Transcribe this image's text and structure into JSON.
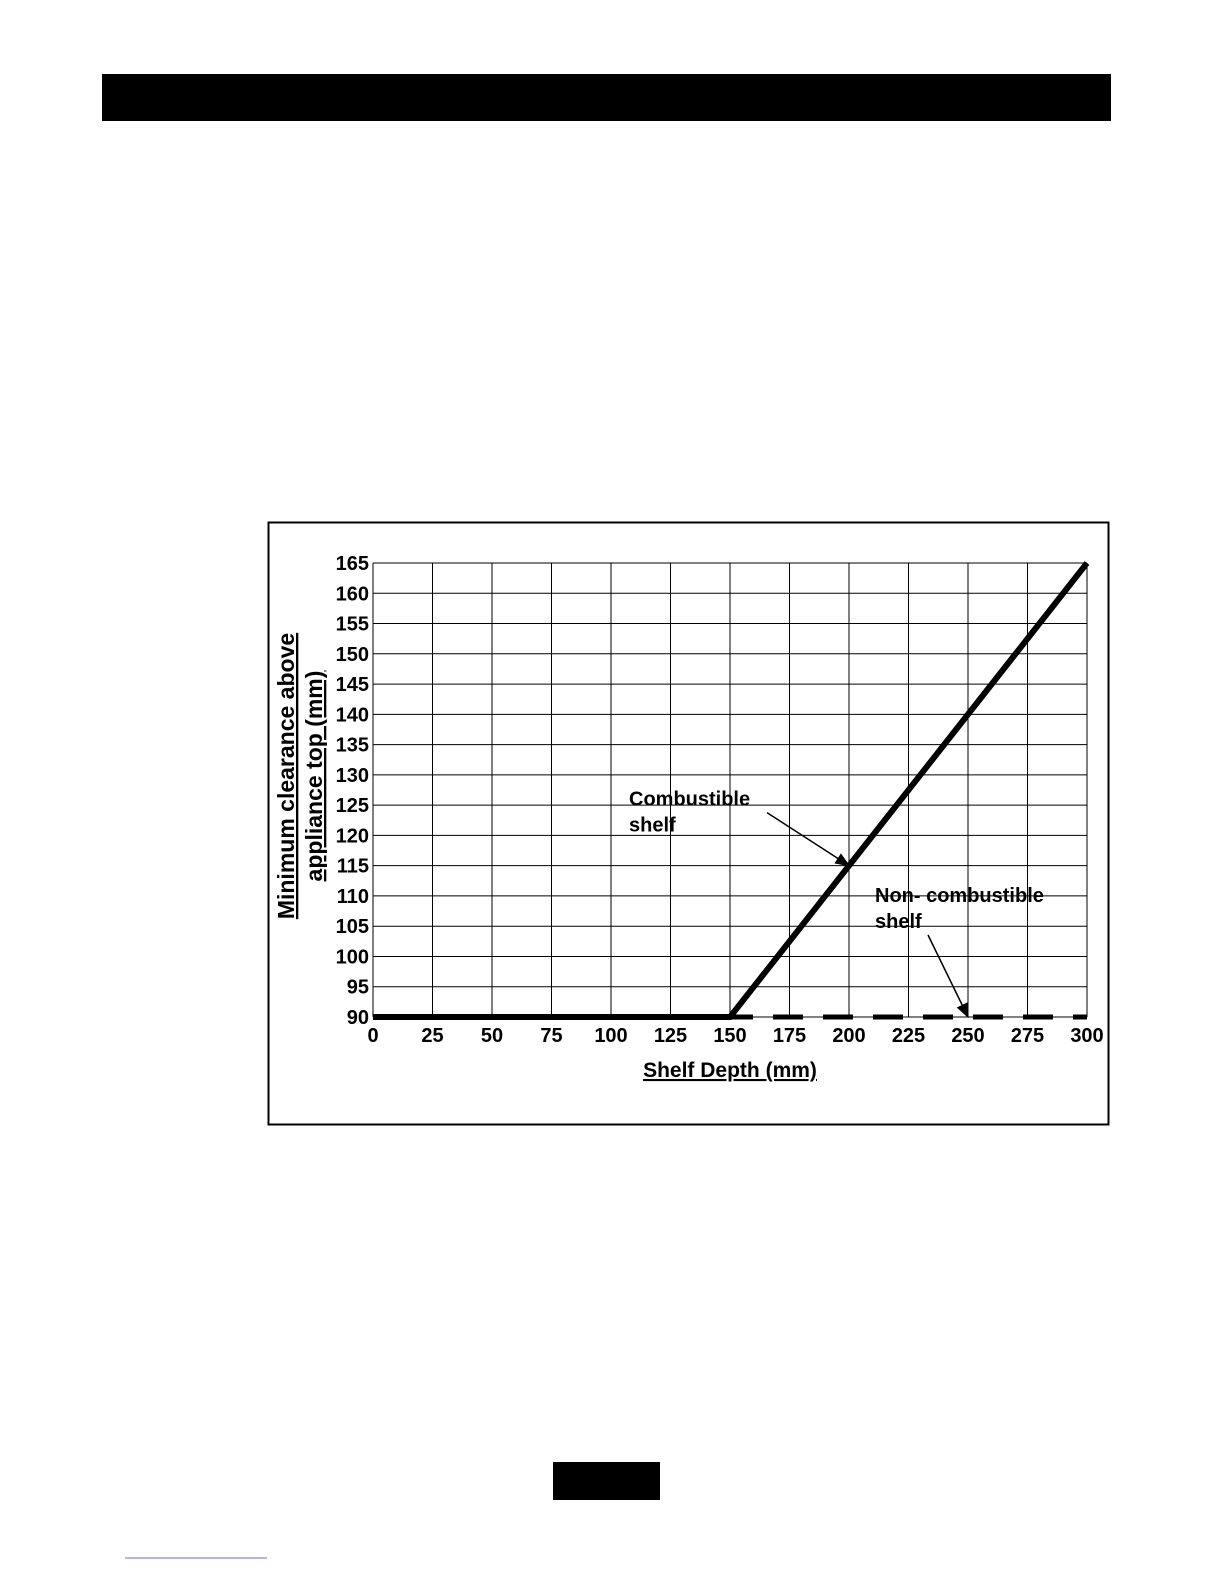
{
  "chart_data": {
    "type": "line",
    "xlabel": "Shelf Depth (mm)",
    "ylabel": [
      "Minimum clearance above",
      "appliance top (mm)"
    ],
    "xlim": [
      0,
      300
    ],
    "xticks": [
      0,
      25,
      50,
      75,
      100,
      125,
      150,
      175,
      200,
      225,
      250,
      275,
      300
    ],
    "ylim": [
      90,
      165
    ],
    "yticks": [
      90,
      95,
      100,
      105,
      110,
      115,
      120,
      125,
      130,
      135,
      140,
      145,
      150,
      155,
      160,
      165
    ],
    "grid": true,
    "series": [
      {
        "color": "#000000",
        "dashed": true,
        "x": [
          0,
          300
        ],
        "values": [
          90,
          90
        ]
      },
      {
        "color": "#000000",
        "dashed": false,
        "x": [
          0,
          150,
          300
        ],
        "values": [
          90,
          90,
          165
        ]
      }
    ],
    "annotations": [
      {
        "lines": [
          "Combustible",
          "shelf"
        ],
        "x": 200,
        "y": 115
      },
      {
        "lines": [
          "Non- combustible",
          "shelf"
        ],
        "x": 250,
        "y": 90
      }
    ]
  }
}
